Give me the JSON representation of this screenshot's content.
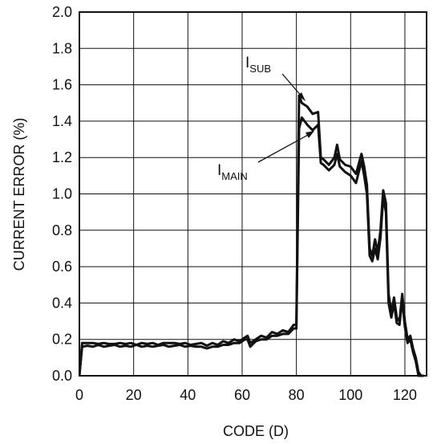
{
  "chart_data": {
    "type": "line",
    "title": "",
    "xlabel": "CODE (D)",
    "ylabel": "CURRENT ERROR (%)",
    "xlim": [
      0,
      128
    ],
    "ylim": [
      0.0,
      2.0
    ],
    "xticks": [
      "0",
      "20",
      "40",
      "60",
      "80",
      "100",
      "120"
    ],
    "yticks": [
      "0.0",
      "0.2",
      "0.4",
      "0.6",
      "0.8",
      "1.0",
      "1.2",
      "1.4",
      "1.6",
      "1.8",
      "2.0"
    ],
    "grid": true,
    "legend": "none",
    "line_color": "#111111",
    "annotations": [
      {
        "main": "I",
        "sub": "SUB",
        "points_to": [
          81,
          1.54
        ]
      },
      {
        "main": "I",
        "sub": "MAIN",
        "points_to": [
          80,
          1.36
        ]
      }
    ],
    "series": [
      {
        "x": [
          0,
          1,
          3,
          5,
          7,
          9,
          11,
          13,
          15,
          17,
          19,
          21,
          23,
          25,
          27,
          29,
          31,
          33,
          35,
          37,
          39,
          41,
          43,
          45,
          47,
          49,
          51,
          53,
          55,
          57,
          59,
          61,
          62,
          63,
          65,
          67,
          69,
          71,
          73,
          75,
          77,
          79,
          80,
          81,
          82,
          84,
          86,
          88,
          89,
          90,
          92,
          94,
          95,
          96,
          98,
          100,
          102,
          104,
          105,
          106,
          107,
          108,
          109,
          110,
          111,
          112,
          113,
          114,
          115,
          116,
          117,
          118,
          119,
          120,
          121,
          122,
          123,
          124,
          125,
          126,
          127
        ],
        "y": [
          0.0,
          0.18,
          0.18,
          0.18,
          0.175,
          0.18,
          0.175,
          0.175,
          0.18,
          0.175,
          0.18,
          0.17,
          0.18,
          0.175,
          0.18,
          0.17,
          0.18,
          0.18,
          0.18,
          0.175,
          0.18,
          0.17,
          0.175,
          0.18,
          0.165,
          0.18,
          0.17,
          0.19,
          0.18,
          0.2,
          0.19,
          0.21,
          0.22,
          0.18,
          0.2,
          0.22,
          0.21,
          0.24,
          0.23,
          0.25,
          0.24,
          0.28,
          0.28,
          1.54,
          1.5,
          1.48,
          1.44,
          1.45,
          1.2,
          1.19,
          1.16,
          1.2,
          1.27,
          1.19,
          1.16,
          1.15,
          1.11,
          1.22,
          1.15,
          1.05,
          0.7,
          0.66,
          0.75,
          0.68,
          0.8,
          1.02,
          0.95,
          0.45,
          0.35,
          0.43,
          0.32,
          0.3,
          0.45,
          0.3,
          0.2,
          0.22,
          0.15,
          0.1,
          0.02,
          0.0,
          0.0
        ]
      },
      {
        "x": [
          0,
          1,
          3,
          5,
          7,
          9,
          11,
          13,
          15,
          17,
          19,
          21,
          23,
          25,
          27,
          29,
          31,
          33,
          35,
          37,
          39,
          41,
          43,
          45,
          47,
          49,
          51,
          53,
          55,
          57,
          59,
          61,
          62,
          63,
          65,
          67,
          69,
          71,
          73,
          75,
          77,
          79,
          80,
          81,
          82,
          84,
          86,
          88,
          89,
          90,
          92,
          94,
          95,
          96,
          98,
          100,
          102,
          104,
          105,
          106,
          107,
          108,
          109,
          110,
          111,
          112,
          113,
          114,
          115,
          116,
          117,
          118,
          119,
          120,
          121,
          122,
          123,
          124,
          125,
          126,
          127
        ],
        "y": [
          0.0,
          0.16,
          0.165,
          0.16,
          0.17,
          0.16,
          0.165,
          0.17,
          0.16,
          0.165,
          0.16,
          0.17,
          0.16,
          0.165,
          0.16,
          0.165,
          0.17,
          0.16,
          0.165,
          0.17,
          0.16,
          0.165,
          0.16,
          0.16,
          0.15,
          0.16,
          0.16,
          0.17,
          0.17,
          0.18,
          0.18,
          0.2,
          0.2,
          0.16,
          0.19,
          0.2,
          0.2,
          0.22,
          0.22,
          0.23,
          0.23,
          0.26,
          0.26,
          1.36,
          1.42,
          1.38,
          1.35,
          1.38,
          1.17,
          1.16,
          1.13,
          1.16,
          1.22,
          1.15,
          1.12,
          1.1,
          1.06,
          1.18,
          1.1,
          1.0,
          0.66,
          0.63,
          0.7,
          0.64,
          0.76,
          0.98,
          0.9,
          0.4,
          0.32,
          0.4,
          0.29,
          0.28,
          0.42,
          0.27,
          0.18,
          0.2,
          0.13,
          0.08,
          0.0,
          0.0,
          0.0
        ]
      }
    ]
  }
}
